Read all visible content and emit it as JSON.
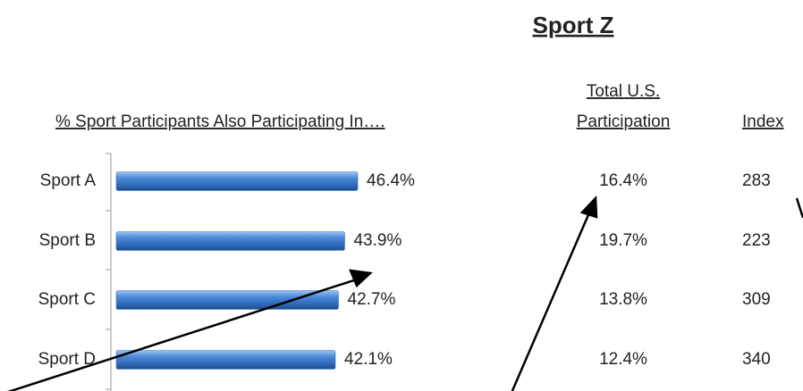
{
  "chart_data": {
    "type": "bar",
    "title": "Sport Z",
    "subtitle": "% Sport Participants Also Participating In….",
    "categories": [
      "Sport A",
      "Sport B",
      "Sport C",
      "Sport D"
    ],
    "values": [
      46.4,
      43.9,
      42.7,
      42.1
    ],
    "value_labels": [
      "46.4%",
      "43.9%",
      "42.7%",
      "42.1%"
    ],
    "color": "#3a78c9",
    "xlim": [
      0,
      50
    ],
    "us_participation": {
      "title": [
        "Total U.S.",
        "Participation"
      ],
      "values": [
        16.4,
        19.7,
        13.8,
        12.4
      ],
      "value_labels": [
        "16.4%",
        "19.7%",
        "13.8%",
        "12.4%"
      ]
    },
    "index": {
      "title": "Index",
      "values": [
        283,
        223,
        309,
        340
      ]
    }
  }
}
